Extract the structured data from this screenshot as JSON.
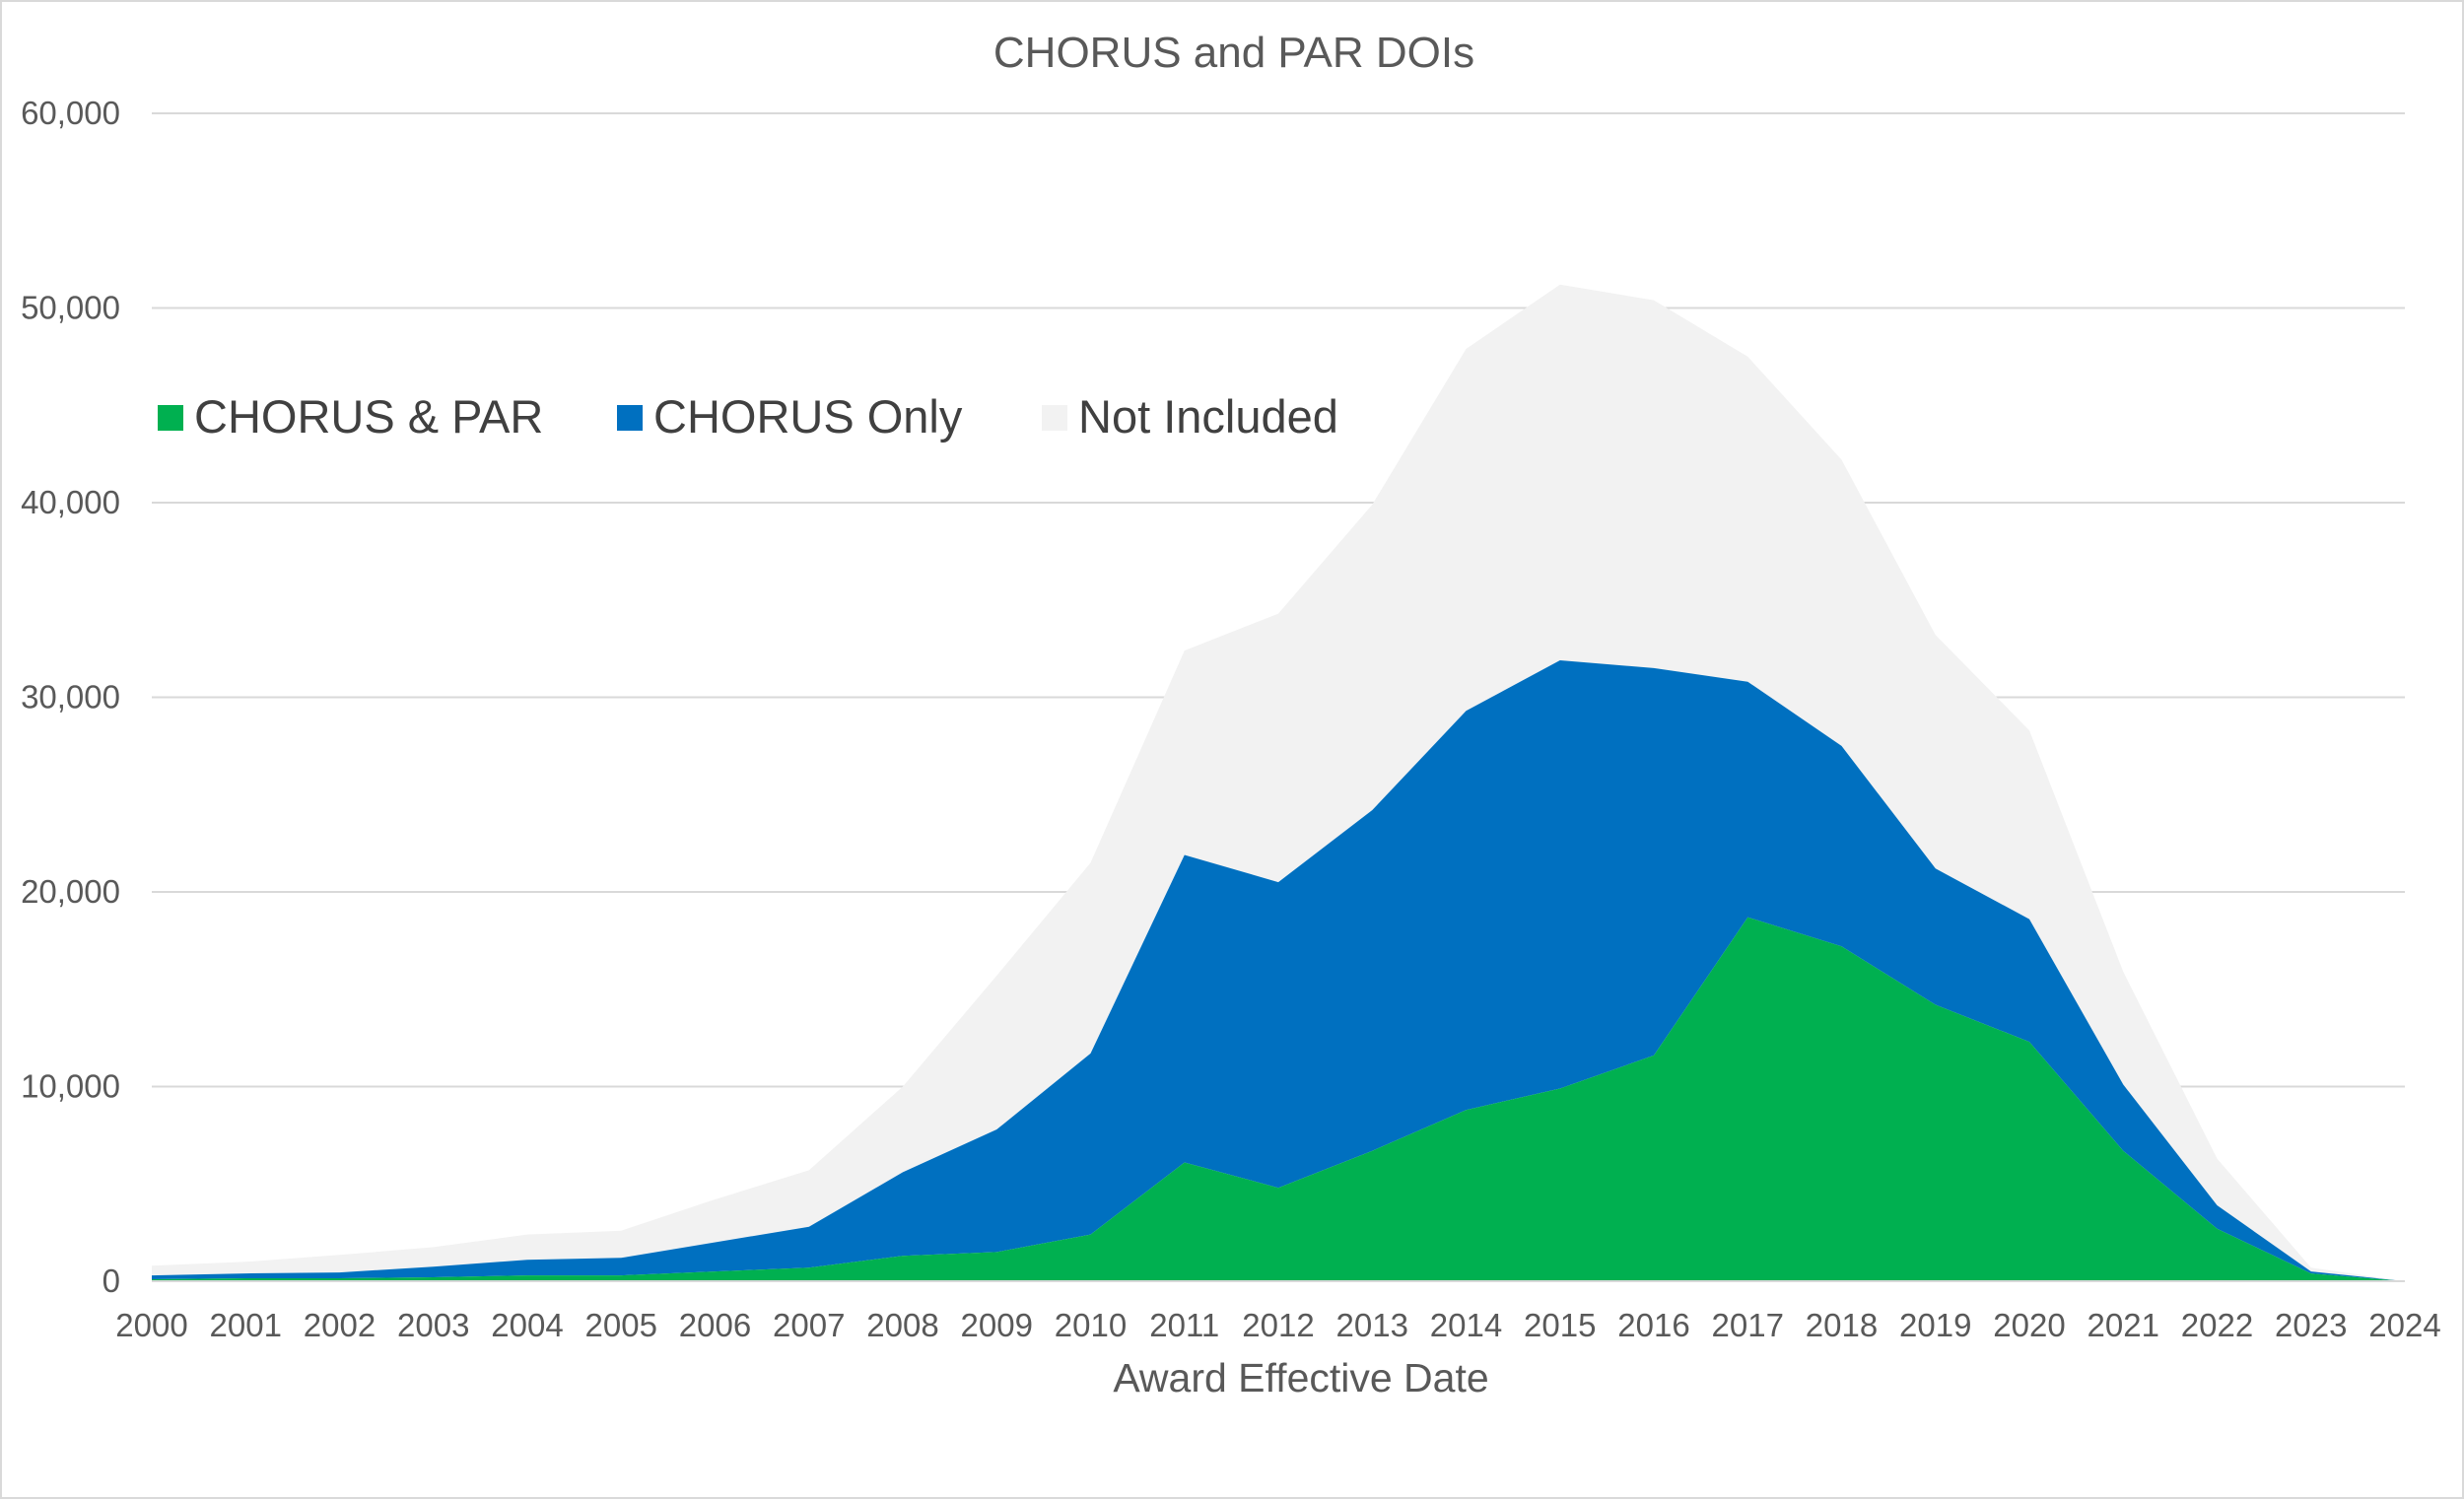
{
  "chart_data": {
    "type": "area",
    "stacked": true,
    "title": "CHORUS and PAR DOIs",
    "xlabel": "Award Effective Date",
    "ylabel": "",
    "ylim": [
      0,
      60000
    ],
    "yticks": [
      "0",
      "10,000",
      "20,000",
      "30,000",
      "40,000",
      "50,000",
      "60,000"
    ],
    "grid": true,
    "legend_position": "top-left",
    "categories": [
      "2000",
      "2001",
      "2002",
      "2003",
      "2004",
      "2005",
      "2006",
      "2007",
      "2008",
      "2009",
      "2010",
      "2011",
      "2012",
      "2013",
      "2014",
      "2015",
      "2016",
      "2017",
      "2018",
      "2019",
      "2020",
      "2021",
      "2022",
      "2023",
      "2024"
    ],
    "series": [
      {
        "name": "CHORUS & PAR",
        "color": "#00b050",
        "values": [
          100,
          150,
          150,
          200,
          300,
          300,
          500,
          700,
          1300,
          1500,
          2400,
          6100,
          4800,
          6700,
          8800,
          9900,
          11600,
          18700,
          17200,
          14200,
          12300,
          6700,
          2700,
          400,
          0
        ]
      },
      {
        "name": "CHORUS Only",
        "color": "#0070c0",
        "values": [
          200,
          250,
          300,
          550,
          800,
          900,
          1500,
          2100,
          4300,
          6300,
          9300,
          15800,
          15700,
          17500,
          20500,
          22000,
          19900,
          12100,
          10300,
          7000,
          6300,
          3400,
          1200,
          100,
          0
        ]
      },
      {
        "name": "Not Included",
        "color": "#f2f2f2",
        "values": [
          500,
          600,
          900,
          1000,
          1300,
          1400,
          2200,
          2900,
          4400,
          7900,
          9800,
          10500,
          13800,
          15700,
          18600,
          19300,
          18900,
          16700,
          14700,
          12000,
          9700,
          5800,
          2400,
          200,
          0
        ]
      }
    ]
  }
}
